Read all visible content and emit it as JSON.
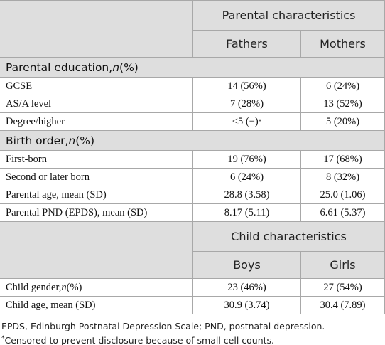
{
  "table": {
    "header": {
      "group": "Parental characteristics",
      "columns": [
        "Fathers",
        "Mothers"
      ]
    },
    "sections": [
      {
        "title": [
          "Parental education, ",
          "n",
          " (%)"
        ],
        "rows": [
          [
            "GCSE",
            "14 (56%)",
            "6 (24%)"
          ],
          [
            "AS/A level",
            "7 (28%)",
            "13 (52%)"
          ],
          [
            "Degree/higher",
            [
              "<5 (−)",
              "*"
            ],
            "5 (20%)"
          ]
        ]
      },
      {
        "title": [
          "Birth order, ",
          "n",
          " (%)"
        ],
        "rows": [
          [
            "First-born",
            "19 (76%)",
            "17 (68%)"
          ],
          [
            "Second or later born",
            "6 (24%)",
            "8 (32%)"
          ],
          [
            "Parental age, mean (SD)",
            "28.8 (3.58)",
            "25.0 (1.06)"
          ],
          [
            "Parental PND (EPDS), mean (SD)",
            "8.17 (5.11)",
            "6.61 (5.37)"
          ]
        ]
      }
    ],
    "child_header": {
      "group": "Child characteristics",
      "columns": [
        "Boys",
        "Girls"
      ]
    },
    "child_rows": [
      [
        [
          "Child gender, ",
          "n",
          " (%)"
        ],
        "23 (46%)",
        "27 (54%)"
      ],
      [
        "Child age, mean (SD)",
        "30.9 (3.74)",
        "30.4 (7.89)"
      ]
    ]
  },
  "footnotes": [
    "EPDS, Edinburgh Postnatal Depression Scale; PND, postnatal depression.",
    [
      "*",
      "Censored to prevent disclosure because of small cell counts."
    ]
  ]
}
